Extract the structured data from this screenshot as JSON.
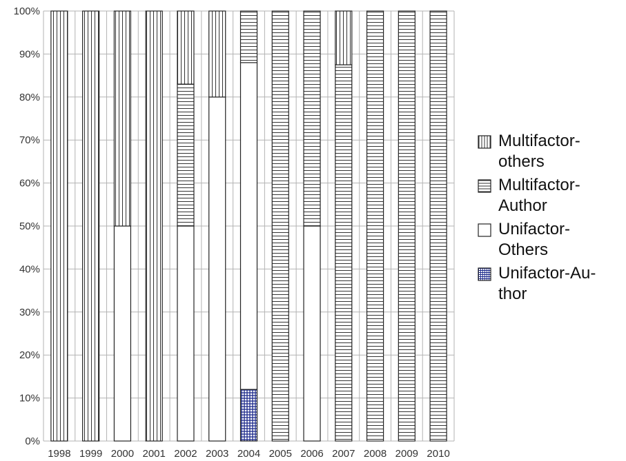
{
  "chart_data": {
    "type": "stacked_bar_percent",
    "categories": [
      "1998",
      "1999",
      "2000",
      "2001",
      "2002",
      "2003",
      "2004",
      "2005",
      "2006",
      "2007",
      "2008",
      "2009",
      "2010"
    ],
    "series": [
      {
        "name": "Unifactor-Author",
        "values": [
          0,
          0,
          0,
          0,
          0,
          0,
          12,
          0,
          0,
          0,
          0,
          0,
          0
        ]
      },
      {
        "name": "Unifactor-Others",
        "values": [
          0,
          0,
          50,
          0,
          50,
          80,
          76,
          0,
          50,
          0,
          0,
          0,
          0
        ]
      },
      {
        "name": "Multifactor-Author",
        "values": [
          0,
          0,
          0,
          0,
          33,
          0,
          12,
          100,
          50,
          87.5,
          100,
          100,
          100
        ]
      },
      {
        "name": "Multifactor-others",
        "values": [
          100,
          100,
          50,
          100,
          17,
          20,
          0,
          0,
          0,
          12.5,
          0,
          0,
          0
        ]
      }
    ],
    "yticks": [
      "0%",
      "10%",
      "20%",
      "30%",
      "40%",
      "50%",
      "60%",
      "70%",
      "80%",
      "90%",
      "100%"
    ],
    "ylim": [
      0,
      100
    ],
    "grid": true,
    "legend_position": "right",
    "legend": [
      {
        "label_lines": [
          "Multifactor-",
          "others"
        ],
        "pattern": "vertical"
      },
      {
        "label_lines": [
          "Multifactor-",
          "Author"
        ],
        "pattern": "horizontal"
      },
      {
        "label_lines": [
          "Unifactor-",
          "Others"
        ],
        "pattern": "empty"
      },
      {
        "label_lines": [
          "Unifactor-Au-",
          "thor"
        ],
        "pattern": "grid"
      }
    ],
    "colors": {
      "outline": "#222222",
      "grid": "#b3b3b3",
      "unifactor_author": "#1c2a8c"
    }
  }
}
